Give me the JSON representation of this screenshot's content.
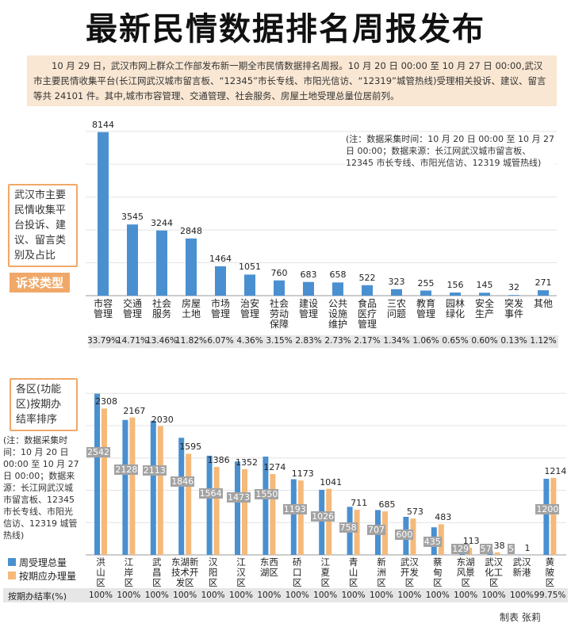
{
  "header": {
    "title": "最新民情数据排名周报发布",
    "intro": "10 月 29 日，武汉市网上群众工作部发布新一期全市民情数据排名周报。10 月 20 日 00:00 至 10 月 27 日 00:00,武汉市主要民情收集平台(长江网武汉城市留言板、“12345”市长专线、市阳光信访、“12319”城管热线)受理相关投诉、建议、留言等共 24101 件。其中,城市市容管理、交通管理、社会服务、房屋土地受理总量位居前列。"
  },
  "chart_data": [
    {
      "type": "bar",
      "title": "武汉市主要民情收集平台投诉、建议、留言类别及占比",
      "tag": "诉求类型",
      "note": "(注：数据采集时间：10 月 20 日 00:00 至 10 月 27 日 00:00；数据来源：长江网武汉城市留言板、12345 市长专线、市阳光信访、12319 城管热线)",
      "categories": [
        "市容管理",
        "交通管理",
        "社会服务",
        "房屋土地",
        "市场管理",
        "治安管理",
        "社会劳动保障",
        "建设管理",
        "公共设施维护",
        "食品医疗管理",
        "三农问题",
        "教育管理",
        "园林绿化",
        "安全生产",
        "突发事件",
        "其他"
      ],
      "values": [
        8144,
        3545,
        3244,
        2848,
        1464,
        1051,
        760,
        683,
        658,
        522,
        323,
        255,
        156,
        145,
        32,
        271
      ],
      "share_labels": [
        "33.79%",
        "14.71%",
        "13.46%",
        "11.82%",
        "6.07%",
        "4.36%",
        "3.15%",
        "2.83%",
        "2.73%",
        "2.17%",
        "1.34%",
        "1.06%",
        "0.65%",
        "0.60%",
        "0.13%",
        "1.12%"
      ],
      "color": "#4a90d0",
      "ylim": [
        0,
        9000
      ]
    },
    {
      "type": "grouped_bar",
      "title": "各区(功能区)按期办结率排序",
      "note": "(注：数据采集时间：10 月 20 日 00:00 至 10 月 27 日 00:00；数据来源：长江网武汉城市留言板、12345 市长专线、市阳光信访、12319 城管热线)",
      "categories": [
        "洪山区",
        "江岸区",
        "武昌区",
        "东湖新技术开发区",
        "汉阳区",
        "江汉区",
        "东西湖区",
        "硚口区",
        "江夏区",
        "青山区",
        "新洲区",
        "武汉开发区",
        "蔡甸区",
        "东湖风景区",
        "武汉化工区",
        "武汉新港",
        "黄陂区"
      ],
      "series": [
        {
          "name": "周受理总量",
          "color": "#4a90d0",
          "values": [
            2542,
            2128,
            2113,
            1846,
            1564,
            1473,
            1550,
            1193,
            1026,
            758,
            707,
            600,
            435,
            129,
            57,
            5,
            1200
          ]
        },
        {
          "name": "按期应办理量",
          "color": "#f5b97a",
          "values": [
            2308,
            2167,
            2030,
            1595,
            1386,
            1352,
            1274,
            1173,
            1041,
            711,
            685,
            573,
            483,
            113,
            38,
            1,
            1214
          ]
        }
      ],
      "rate_title": "按期办结率(%)",
      "rate_labels": [
        "100%",
        "100%",
        "100%",
        "100%",
        "100%",
        "100%",
        "100%",
        "100%",
        "100%",
        "100%",
        "100%",
        "100%",
        "100%",
        "100%",
        "100%",
        "100%",
        "99.75%"
      ],
      "ylim": [
        0,
        2700
      ]
    }
  ],
  "footer": {
    "credit": "制表 张莉"
  }
}
